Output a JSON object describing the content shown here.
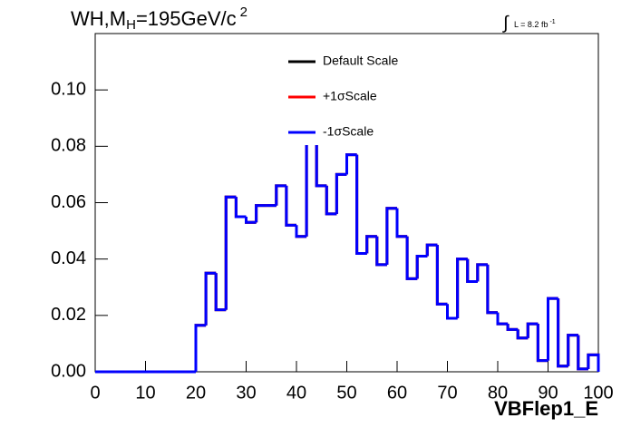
{
  "chart_data": {
    "type": "histogram",
    "title": {
      "main": "WH,M",
      "sub": "H",
      "rest": "=195GeV/c",
      "sup": "2"
    },
    "lumi": {
      "symbol": "∫",
      "text": "L = 8.2 fb",
      "sup": "-1"
    },
    "x_label": "VBFlep1_E",
    "bins": [
      0,
      2,
      4,
      6,
      8,
      10,
      12,
      14,
      16,
      18,
      20,
      22,
      24,
      26,
      28,
      30,
      32,
      34,
      36,
      38,
      40,
      42,
      44,
      46,
      48,
      50,
      52,
      54,
      56,
      58,
      60,
      62,
      64,
      66,
      68,
      70,
      72,
      74,
      76,
      78,
      80,
      82,
      84,
      86,
      88,
      90,
      92,
      94,
      96,
      98,
      100
    ],
    "series": [
      {
        "name": "Default Scale",
        "color": "#000000",
        "values": [
          0,
          0,
          0,
          0,
          0,
          0,
          0,
          0,
          0,
          0,
          0.0165,
          0.035,
          0.022,
          0.062,
          0.055,
          0.053,
          0.059,
          0.059,
          0.066,
          0.052,
          0.048,
          0.085,
          0.066,
          0.056,
          0.07,
          0.077,
          0.042,
          0.048,
          0.038,
          0.058,
          0.048,
          0.033,
          0.041,
          0.045,
          0.024,
          0.019,
          0.04,
          0.032,
          0.038,
          0.021,
          0.017,
          0.015,
          0.012,
          0.017,
          0.004,
          0.026,
          0.002,
          0.013,
          0.001,
          0.006
        ]
      },
      {
        "name": "+1σScale",
        "color": "#ff0000",
        "values": [
          0,
          0,
          0,
          0,
          0,
          0,
          0,
          0,
          0,
          0,
          0.0165,
          0.035,
          0.022,
          0.062,
          0.055,
          0.053,
          0.059,
          0.059,
          0.066,
          0.052,
          0.048,
          0.085,
          0.066,
          0.056,
          0.07,
          0.077,
          0.042,
          0.048,
          0.038,
          0.058,
          0.048,
          0.033,
          0.041,
          0.045,
          0.024,
          0.019,
          0.04,
          0.032,
          0.038,
          0.021,
          0.017,
          0.015,
          0.012,
          0.017,
          0.004,
          0.026,
          0.002,
          0.013,
          0.001,
          0.006
        ]
      },
      {
        "name": "-1σScale",
        "color": "#0000ff",
        "values": [
          0,
          0,
          0,
          0,
          0,
          0,
          0,
          0,
          0,
          0,
          0.0165,
          0.035,
          0.022,
          0.062,
          0.055,
          0.053,
          0.059,
          0.059,
          0.066,
          0.052,
          0.048,
          0.085,
          0.066,
          0.056,
          0.07,
          0.077,
          0.042,
          0.048,
          0.038,
          0.058,
          0.048,
          0.033,
          0.041,
          0.045,
          0.024,
          0.019,
          0.04,
          0.032,
          0.038,
          0.021,
          0.017,
          0.015,
          0.012,
          0.017,
          0.004,
          0.026,
          0.002,
          0.013,
          0.001,
          0.006
        ]
      }
    ],
    "xlim": [
      0,
      100
    ],
    "xticks": [
      0,
      10,
      20,
      30,
      40,
      50,
      60,
      70,
      80,
      90,
      100
    ],
    "ylim": [
      0,
      0.12
    ],
    "yticks": [
      {
        "value": 0,
        "label": "0.00"
      },
      {
        "value": 0.02,
        "label": "0.02"
      },
      {
        "value": 0.04,
        "label": "0.04"
      },
      {
        "value": 0.06,
        "label": "0.06"
      },
      {
        "value": 0.08,
        "label": "0.08"
      },
      {
        "value": 0.1,
        "label": "0.10"
      }
    ],
    "legend": "top"
  }
}
